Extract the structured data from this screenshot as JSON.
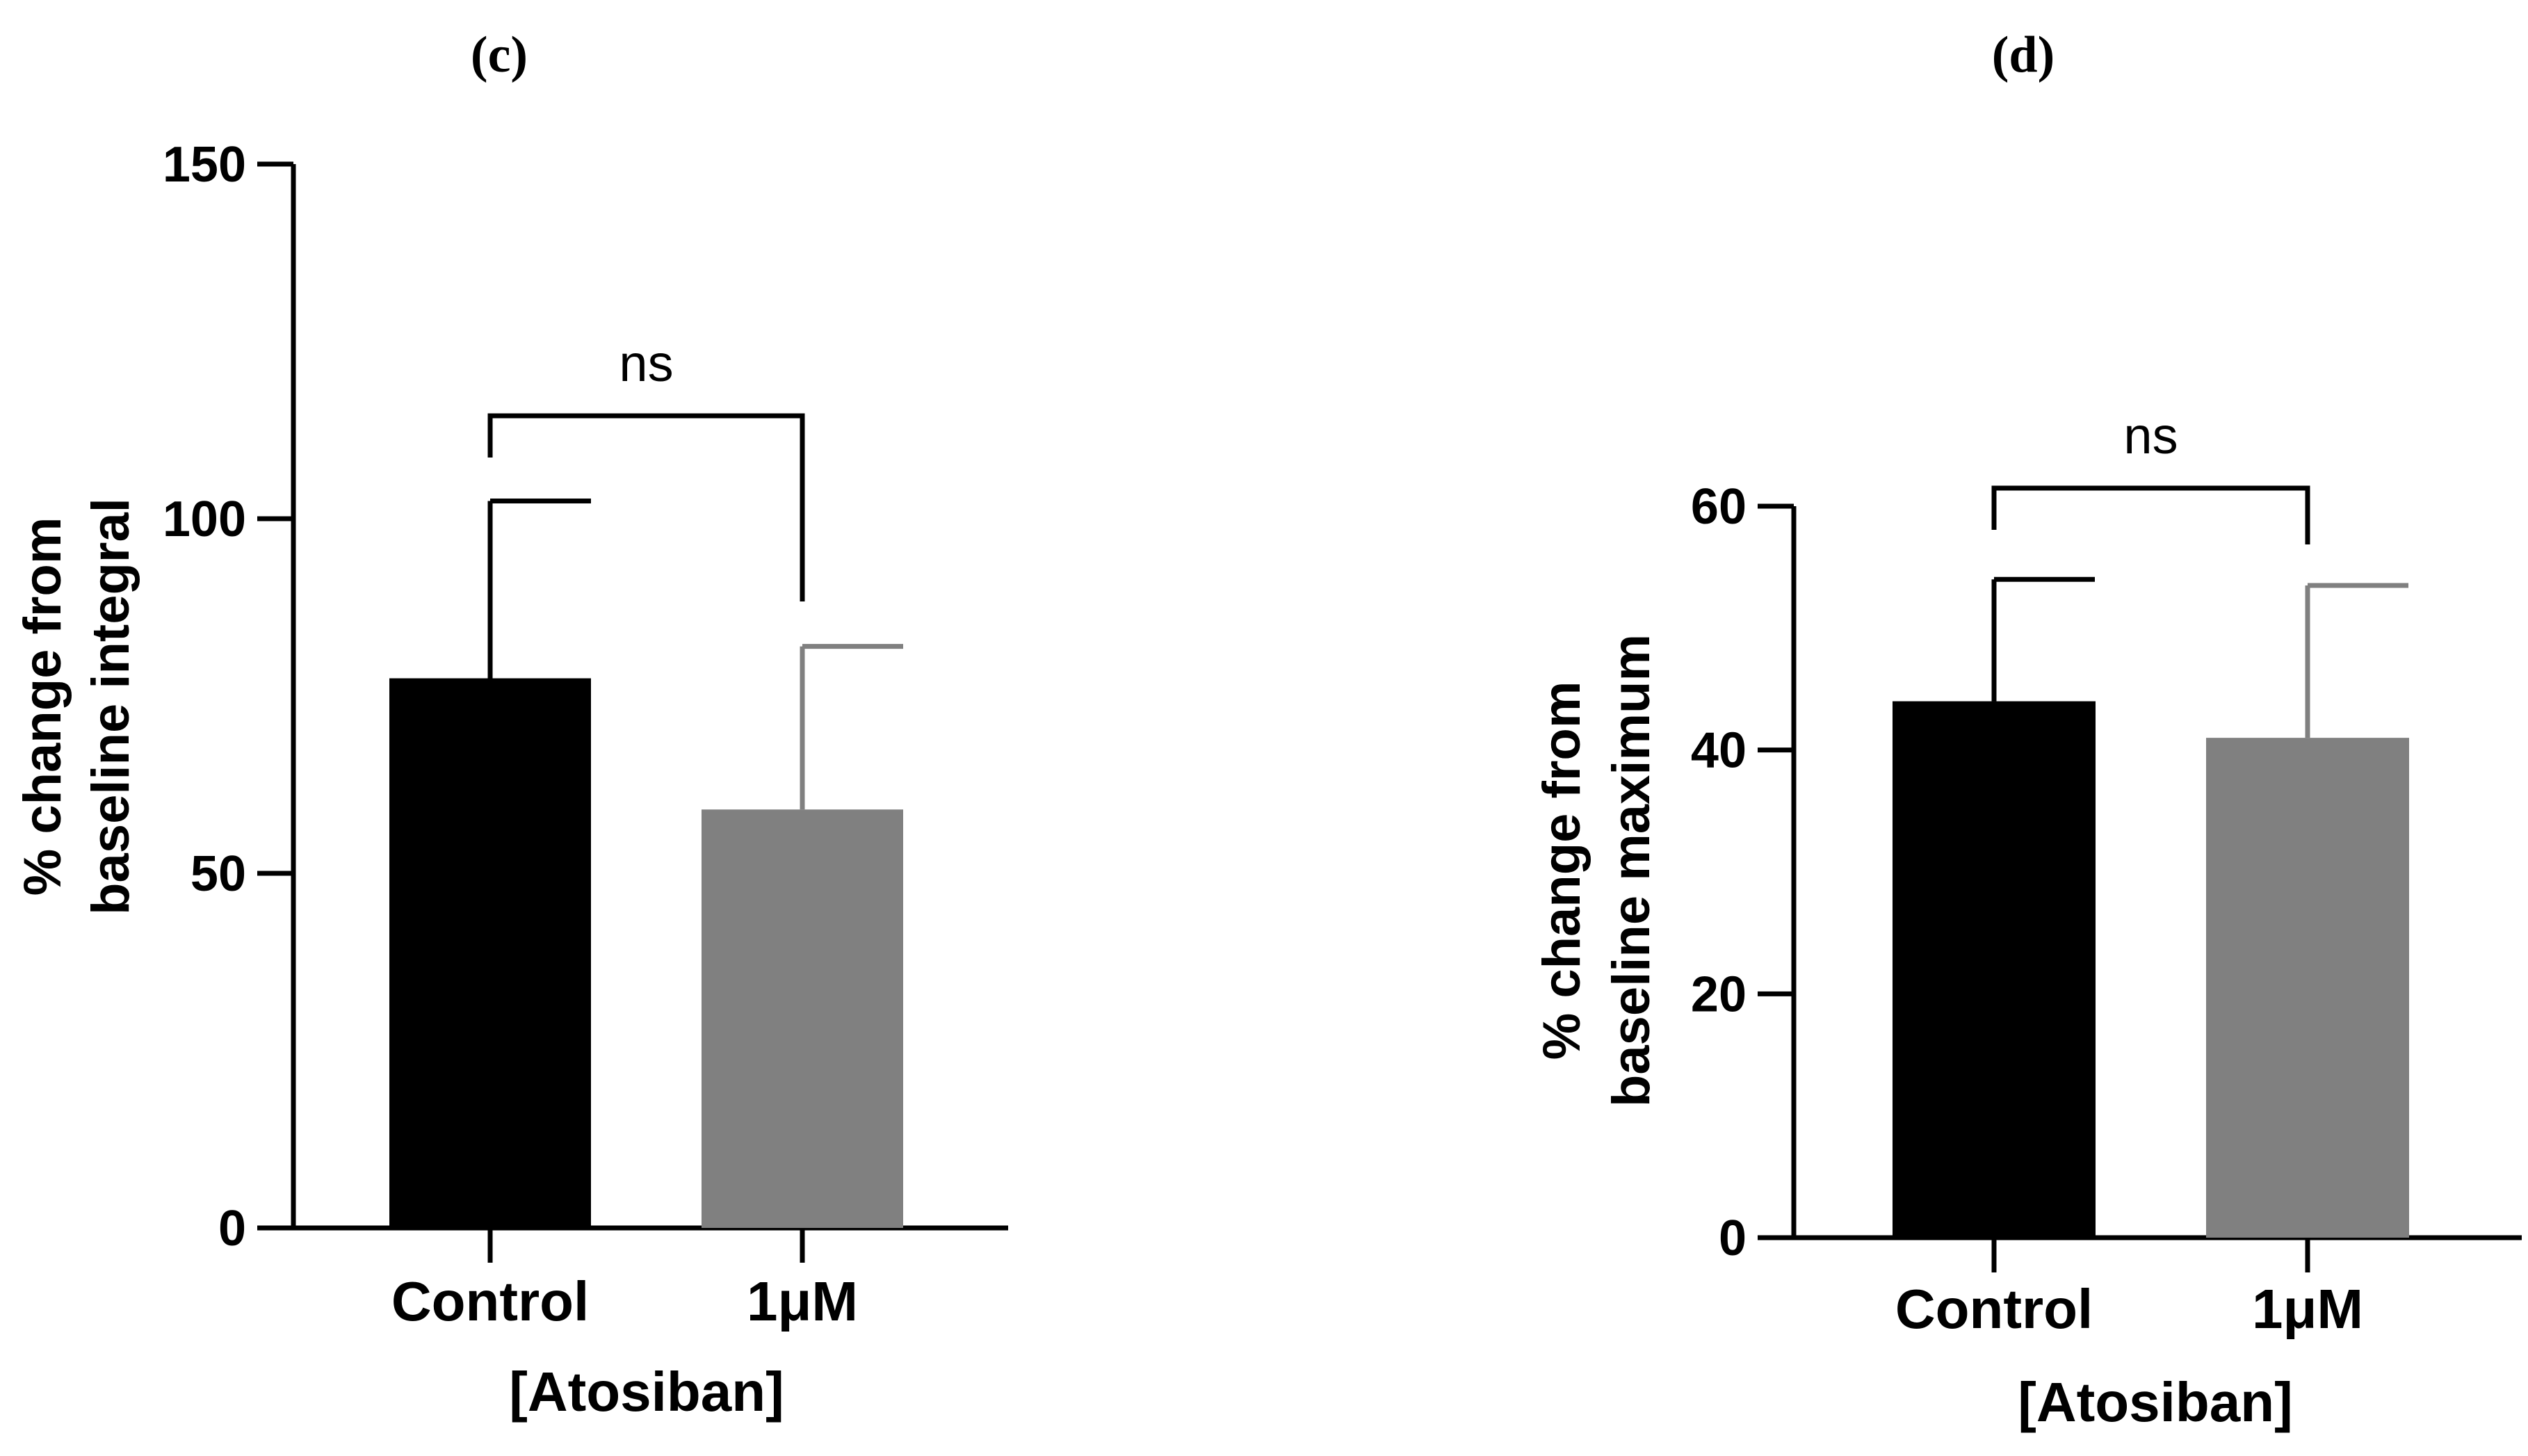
{
  "chart_data": [
    {
      "type": "bar",
      "panel_label": "(c)",
      "categories": [
        "Control",
        "1μM"
      ],
      "values": [
        77.5,
        59
      ],
      "errors": [
        25,
        23
      ],
      "colors": [
        "#000000",
        "#808080"
      ],
      "ylabel_lines": [
        "% change from",
        "baseline integral"
      ],
      "xlabel": "[Atosiban]",
      "ylim": [
        0,
        150
      ],
      "yticks": [
        0,
        50,
        100,
        150
      ],
      "significance": {
        "text": "ns",
        "level": 115
      }
    },
    {
      "type": "bar",
      "panel_label": "(d)",
      "categories": [
        "Control",
        "1μM"
      ],
      "values": [
        44,
        41
      ],
      "errors": [
        10,
        12.5
      ],
      "colors": [
        "#000000",
        "#808080"
      ],
      "ylabel_lines": [
        "% change from",
        "baseline maximum"
      ],
      "xlabel": "[Atosiban]",
      "ylim": [
        0,
        60
      ],
      "yticks": [
        0,
        20,
        40,
        60
      ],
      "significance": {
        "text": "ns",
        "level": 60.5
      }
    }
  ]
}
